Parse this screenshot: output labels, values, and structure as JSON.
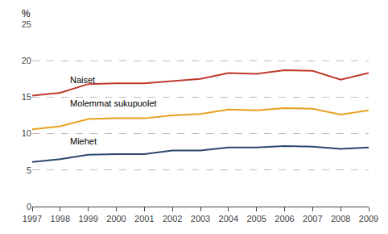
{
  "chart_data": {
    "type": "line",
    "ylabel": "%",
    "x": [
      1997,
      1998,
      1999,
      2000,
      2001,
      2002,
      2003,
      2004,
      2005,
      2006,
      2007,
      2008,
      2009
    ],
    "series": [
      {
        "name": "Naiset",
        "color": "#c0392b",
        "values": [
          15.2,
          15.6,
          16.8,
          16.9,
          16.9,
          17.2,
          17.5,
          18.3,
          18.2,
          18.7,
          18.6,
          17.4,
          18.3
        ]
      },
      {
        "name": "Molemmat sukupuolet",
        "color": "#e8a020",
        "values": [
          10.6,
          11.0,
          12.0,
          12.1,
          12.1,
          12.5,
          12.7,
          13.3,
          13.2,
          13.5,
          13.4,
          12.6,
          13.2
        ]
      },
      {
        "name": "Miehet",
        "color": "#2c4770",
        "values": [
          6.1,
          6.5,
          7.1,
          7.2,
          7.2,
          7.7,
          7.7,
          8.1,
          8.1,
          8.3,
          8.2,
          7.9,
          8.1
        ]
      }
    ],
    "annotations": [
      {
        "text": "Naiset",
        "x": 1998.3,
        "y": 17.4
      },
      {
        "text": "Molemmat sukupuolet",
        "x": 1998.3,
        "y": 14.2
      },
      {
        "text": "Miehet",
        "x": 1998.3,
        "y": 9.0
      }
    ],
    "xlim": [
      1997,
      2009
    ],
    "xticks": [
      1997,
      1998,
      1999,
      2000,
      2001,
      2002,
      2003,
      2004,
      2005,
      2006,
      2007,
      2008,
      2009
    ],
    "ylim": [
      0,
      25
    ],
    "yticks": [
      0,
      5,
      10,
      15,
      20,
      25
    ],
    "grid": true
  }
}
